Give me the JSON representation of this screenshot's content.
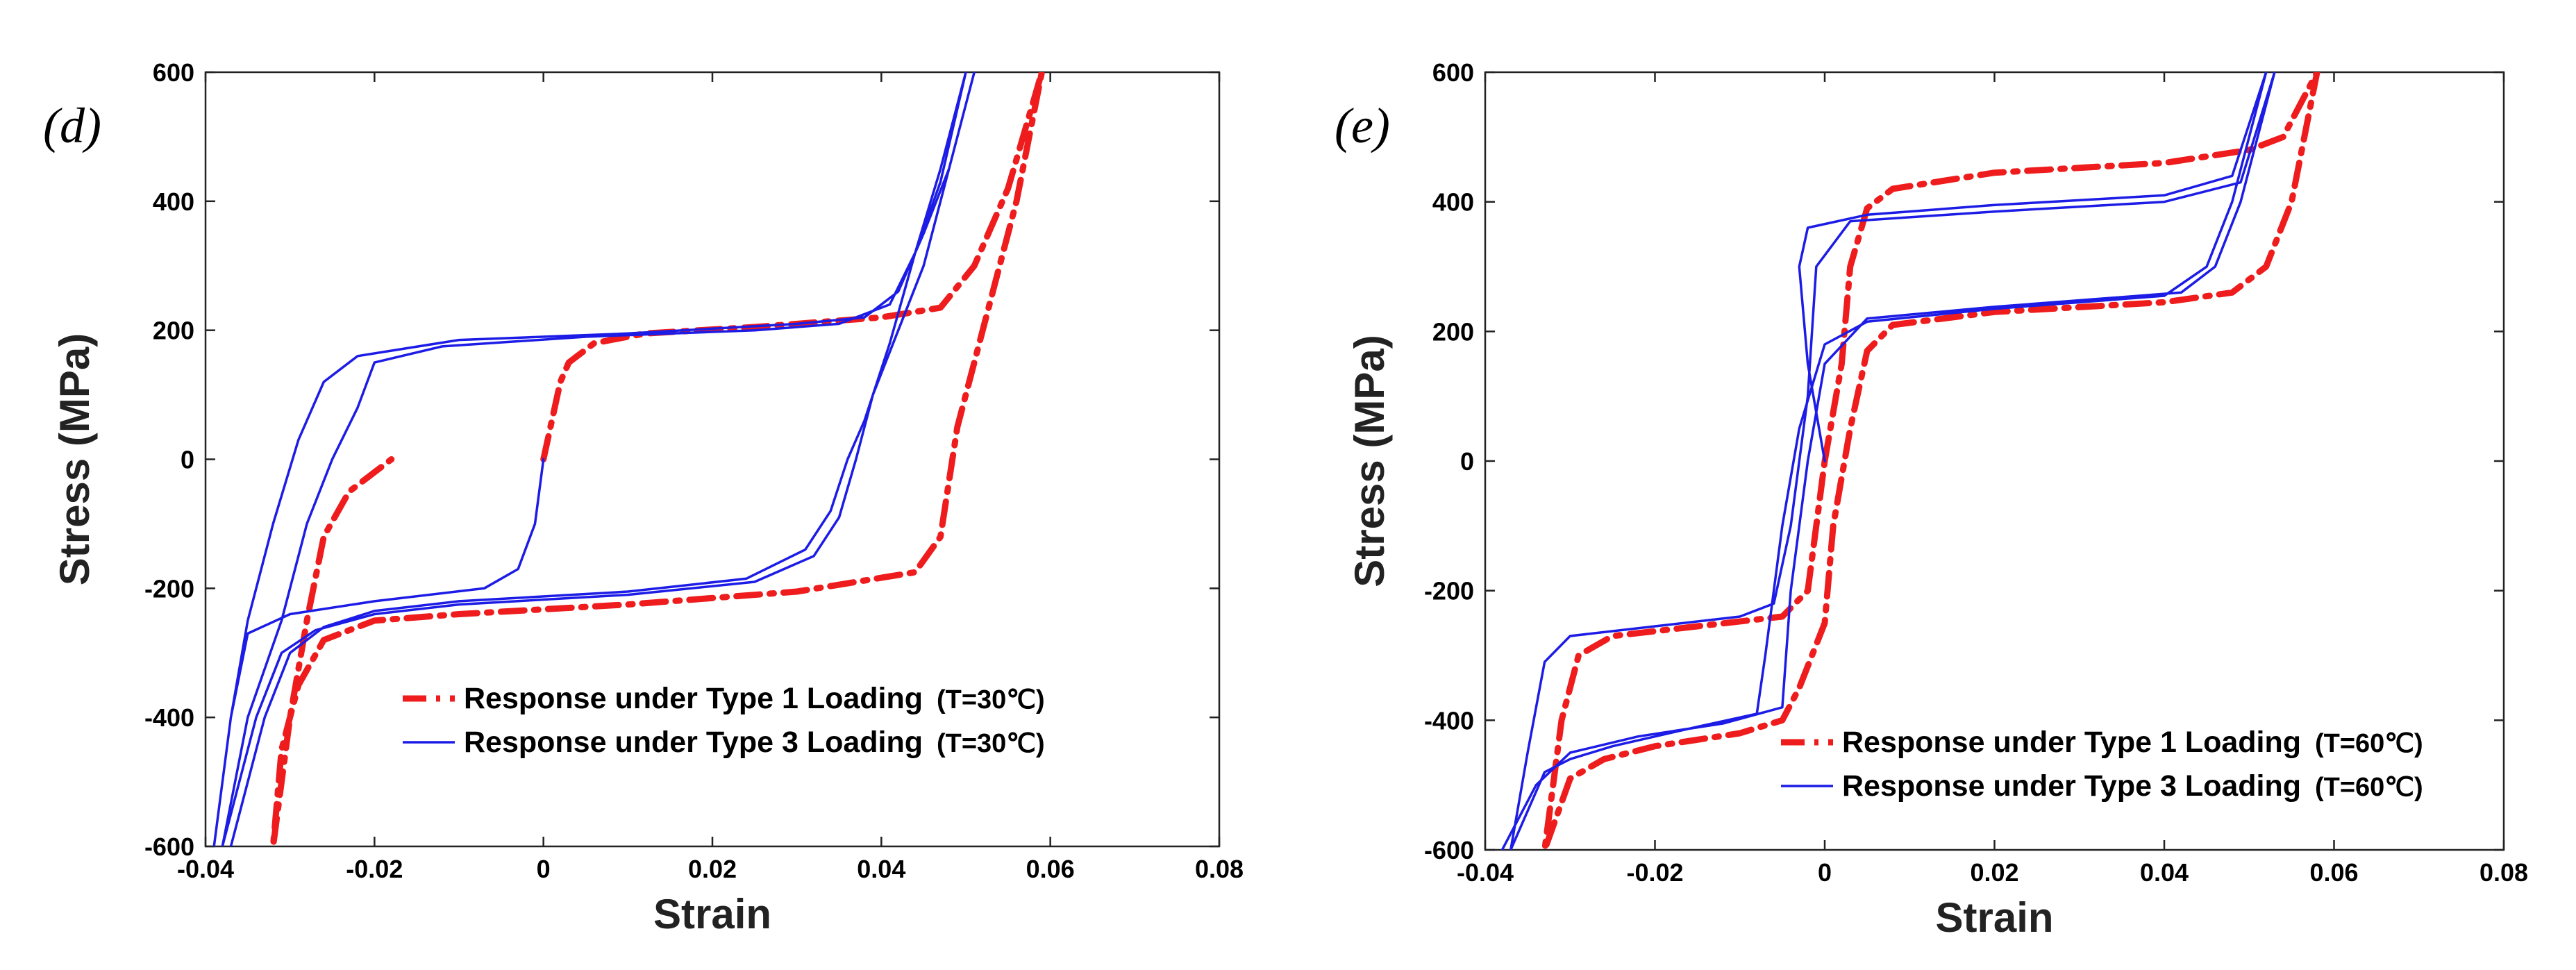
{
  "chart_data": [
    {
      "type": "line",
      "panel_label": "(d)",
      "xlabel": "Strain",
      "ylabel": "Stress (MPa)",
      "xlim": [
        -0.04,
        0.08
      ],
      "ylim": [
        -600,
        600
      ],
      "xticks": [
        "-0.04",
        "-0.02",
        "0",
        "0.02",
        "0.04",
        "0.06",
        "0.08"
      ],
      "yticks": [
        "600",
        "400",
        "200",
        "0",
        "-200",
        "-400",
        "-600"
      ],
      "legend": [
        {
          "label": "Response under Type 1 Loading",
          "temp": "(T=30℃)",
          "color": "#ee1c1c",
          "style": "dashdot"
        },
        {
          "label": "Response under Type 3 Loading",
          "temp": "(T=30℃)",
          "color": "#1c1ce6",
          "style": "solid"
        }
      ],
      "series": [
        {
          "name": "Response under Type 1 Loading",
          "color": "#ee1c1c",
          "style": "dashdot",
          "points": [
            [
              0,
              0
            ],
            [
              0.001,
              60
            ],
            [
              0.002,
              120
            ],
            [
              0.003,
              150
            ],
            [
              0.006,
              180
            ],
            [
              0.012,
              195
            ],
            [
              0.025,
              205
            ],
            [
              0.04,
              220
            ],
            [
              0.047,
              235
            ],
            [
              0.051,
              300
            ],
            [
              0.055,
              420
            ],
            [
              0.059,
              600
            ],
            [
              0.056,
              400
            ],
            [
              0.052,
              200
            ],
            [
              0.049,
              50
            ],
            [
              0.047,
              -120
            ],
            [
              0.044,
              -175
            ],
            [
              0.03,
              -205
            ],
            [
              0.01,
              -225
            ],
            [
              -0.01,
              -240
            ],
            [
              -0.02,
              -250
            ],
            [
              -0.026,
              -280
            ],
            [
              -0.029,
              -350
            ],
            [
              -0.031,
              -450
            ],
            [
              -0.032,
              -600
            ],
            [
              -0.03,
              -400
            ],
            [
              -0.028,
              -250
            ],
            [
              -0.026,
              -120
            ],
            [
              -0.023,
              -50
            ],
            [
              -0.018,
              0
            ]
          ]
        },
        {
          "name": "Response under Type 3 Loading",
          "color": "#1c1ce6",
          "style": "solid",
          "points": [
            [
              0,
              0
            ],
            [
              -0.001,
              -100
            ],
            [
              -0.003,
              -170
            ],
            [
              -0.007,
              -200
            ],
            [
              -0.02,
              -220
            ],
            [
              -0.03,
              -240
            ],
            [
              -0.035,
              -270
            ],
            [
              -0.037,
              -400
            ],
            [
              -0.039,
              -600
            ],
            [
              -0.037,
              -400
            ],
            [
              -0.035,
              -250
            ],
            [
              -0.032,
              -100
            ],
            [
              -0.029,
              30
            ],
            [
              -0.026,
              120
            ],
            [
              -0.022,
              160
            ],
            [
              -0.01,
              185
            ],
            [
              0.01,
              195
            ],
            [
              0.03,
              210
            ],
            [
              0.038,
              220
            ],
            [
              0.042,
              260
            ],
            [
              0.045,
              350
            ],
            [
              0.048,
              450
            ],
            [
              0.051,
              600
            ],
            [
              0.048,
              450
            ],
            [
              0.045,
              300
            ],
            [
              0.042,
              200
            ],
            [
              0.039,
              100
            ],
            [
              0.037,
              0
            ],
            [
              0.035,
              -90
            ],
            [
              0.032,
              -150
            ],
            [
              0.025,
              -190
            ],
            [
              0.01,
              -210
            ],
            [
              -0.01,
              -225
            ],
            [
              -0.02,
              -240
            ],
            [
              -0.027,
              -265
            ],
            [
              -0.031,
              -300
            ],
            [
              -0.034,
              -400
            ],
            [
              -0.038,
              -600
            ],
            [
              -0.035,
              -400
            ],
            [
              -0.031,
              -250
            ],
            [
              -0.028,
              -100
            ],
            [
              -0.025,
              0
            ],
            [
              -0.022,
              80
            ],
            [
              -0.02,
              150
            ],
            [
              -0.012,
              175
            ],
            [
              0.005,
              190
            ],
            [
              0.025,
              200
            ],
            [
              0.035,
              210
            ],
            [
              0.041,
              240
            ],
            [
              0.044,
              320
            ],
            [
              0.047,
              430
            ],
            [
              0.05,
              600
            ],
            [
              0.047,
              450
            ],
            [
              0.044,
              320
            ],
            [
              0.041,
              180
            ],
            [
              0.038,
              60
            ],
            [
              0.036,
              0
            ],
            [
              0.034,
              -80
            ],
            [
              0.031,
              -140
            ],
            [
              0.024,
              -185
            ],
            [
              0.01,
              -205
            ],
            [
              -0.01,
              -220
            ],
            [
              -0.02,
              -235
            ],
            [
              -0.026,
              -260
            ],
            [
              -0.03,
              -300
            ],
            [
              -0.033,
              -400
            ],
            [
              -0.037,
              -600
            ]
          ]
        }
      ]
    },
    {
      "type": "line",
      "panel_label": "(e)",
      "xlabel": "Strain",
      "ylabel": "Stress (MPa)",
      "xlim": [
        -0.04,
        0.08
      ],
      "ylim": [
        -600,
        600
      ],
      "xticks": [
        "-0.04",
        "-0.02",
        "0",
        "0.02",
        "0.04",
        "0.06",
        "0.08"
      ],
      "yticks": [
        "600",
        "400",
        "200",
        "0",
        "-200",
        "-400",
        "-600"
      ],
      "legend": [
        {
          "label": "Response under Type 1 Loading",
          "temp": "(T=60℃)",
          "color": "#ee1c1c",
          "style": "dashdot"
        },
        {
          "label": "Response under Type 3 Loading",
          "temp": "(T=60℃)",
          "color": "#1c1ce6",
          "style": "solid"
        }
      ],
      "series": [
        {
          "name": "Response under Type 1 Loading",
          "color": "#ee1c1c",
          "style": "dashdot",
          "points": [
            [
              0,
              0
            ],
            [
              0.002,
              150
            ],
            [
              0.003,
              300
            ],
            [
              0.005,
              390
            ],
            [
              0.008,
              420
            ],
            [
              0.02,
              445
            ],
            [
              0.04,
              460
            ],
            [
              0.05,
              480
            ],
            [
              0.054,
              500
            ],
            [
              0.058,
              600
            ],
            [
              0.055,
              400
            ],
            [
              0.052,
              300
            ],
            [
              0.048,
              260
            ],
            [
              0.04,
              245
            ],
            [
              0.02,
              230
            ],
            [
              0.008,
              210
            ],
            [
              0.005,
              170
            ],
            [
              0.003,
              50
            ],
            [
              0.001,
              -100
            ],
            [
              0,
              -250
            ],
            [
              -0.003,
              -350
            ],
            [
              -0.005,
              -400
            ],
            [
              -0.01,
              -420
            ],
            [
              -0.02,
              -440
            ],
            [
              -0.026,
              -460
            ],
            [
              -0.03,
              -490
            ],
            [
              -0.033,
              -600
            ],
            [
              -0.031,
              -400
            ],
            [
              -0.029,
              -300
            ],
            [
              -0.025,
              -270
            ],
            [
              -0.015,
              -255
            ],
            [
              -0.005,
              -240
            ],
            [
              -0.002,
              -200
            ],
            [
              0,
              0
            ]
          ]
        },
        {
          "name": "Response under Type 3 Loading",
          "color": "#1c1ce6",
          "style": "solid",
          "points": [
            [
              0,
              0
            ],
            [
              -0.002,
              150
            ],
            [
              -0.003,
              300
            ],
            [
              -0.002,
              360
            ],
            [
              0.005,
              380
            ],
            [
              0.02,
              395
            ],
            [
              0.04,
              410
            ],
            [
              0.048,
              440
            ],
            [
              0.052,
              600
            ],
            [
              0.048,
              400
            ],
            [
              0.045,
              300
            ],
            [
              0.04,
              255
            ],
            [
              0.02,
              235
            ],
            [
              0.005,
              215
            ],
            [
              0,
              180
            ],
            [
              -0.003,
              50
            ],
            [
              -0.005,
              -100
            ],
            [
              -0.007,
              -300
            ],
            [
              -0.008,
              -390
            ],
            [
              -0.015,
              -410
            ],
            [
              -0.025,
              -440
            ],
            [
              -0.03,
              -460
            ],
            [
              -0.033,
              -480
            ],
            [
              -0.037,
              -600
            ],
            [
              -0.035,
              -450
            ],
            [
              -0.033,
              -310
            ],
            [
              -0.03,
              -270
            ],
            [
              -0.02,
              -255
            ],
            [
              -0.01,
              -240
            ],
            [
              -0.006,
              -220
            ],
            [
              -0.004,
              -100
            ],
            [
              -0.002,
              100
            ],
            [
              -0.001,
              300
            ],
            [
              0.003,
              370
            ],
            [
              0.02,
              385
            ],
            [
              0.04,
              400
            ],
            [
              0.049,
              430
            ],
            [
              0.053,
              600
            ],
            [
              0.049,
              400
            ],
            [
              0.046,
              300
            ],
            [
              0.042,
              260
            ],
            [
              0.02,
              238
            ],
            [
              0.005,
              220
            ],
            [
              0,
              150
            ],
            [
              -0.002,
              0
            ],
            [
              -0.004,
              -200
            ],
            [
              -0.005,
              -380
            ],
            [
              -0.012,
              -405
            ],
            [
              -0.022,
              -425
            ],
            [
              -0.03,
              -450
            ],
            [
              -0.034,
              -500
            ],
            [
              -0.038,
              -600
            ]
          ]
        }
      ]
    }
  ]
}
